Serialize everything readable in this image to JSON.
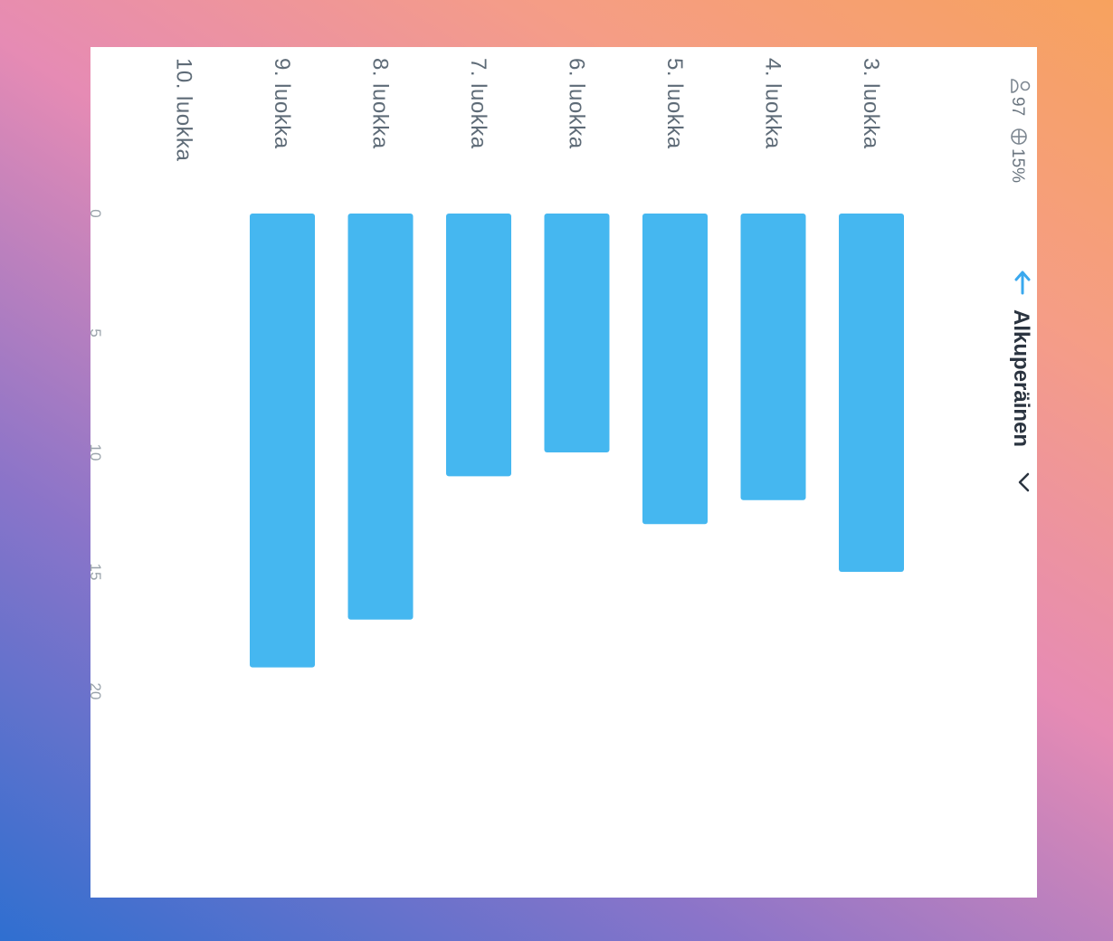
{
  "header": {
    "members_count": "97",
    "percentage": "15%",
    "sort_label": "Alkuperäinen",
    "icons": [
      "person-icon",
      "globe-icon",
      "arrow-up-icon",
      "chevron-down-icon"
    ]
  },
  "chart_data": {
    "type": "bar",
    "orientation": "horizontal",
    "categories": [
      "3. luokka",
      "4. luokka",
      "5. luokka",
      "6. luokka",
      "7. luokka",
      "8. luokka",
      "9. luokka",
      "10. luokka"
    ],
    "values": [
      15,
      12,
      13,
      10,
      11,
      17,
      19,
      0
    ],
    "axis_ticks": [
      "0",
      "5",
      "10",
      "15",
      "20"
    ],
    "xlim": [
      0,
      20
    ],
    "grid": false,
    "bar_color": "#45b7f0"
  }
}
